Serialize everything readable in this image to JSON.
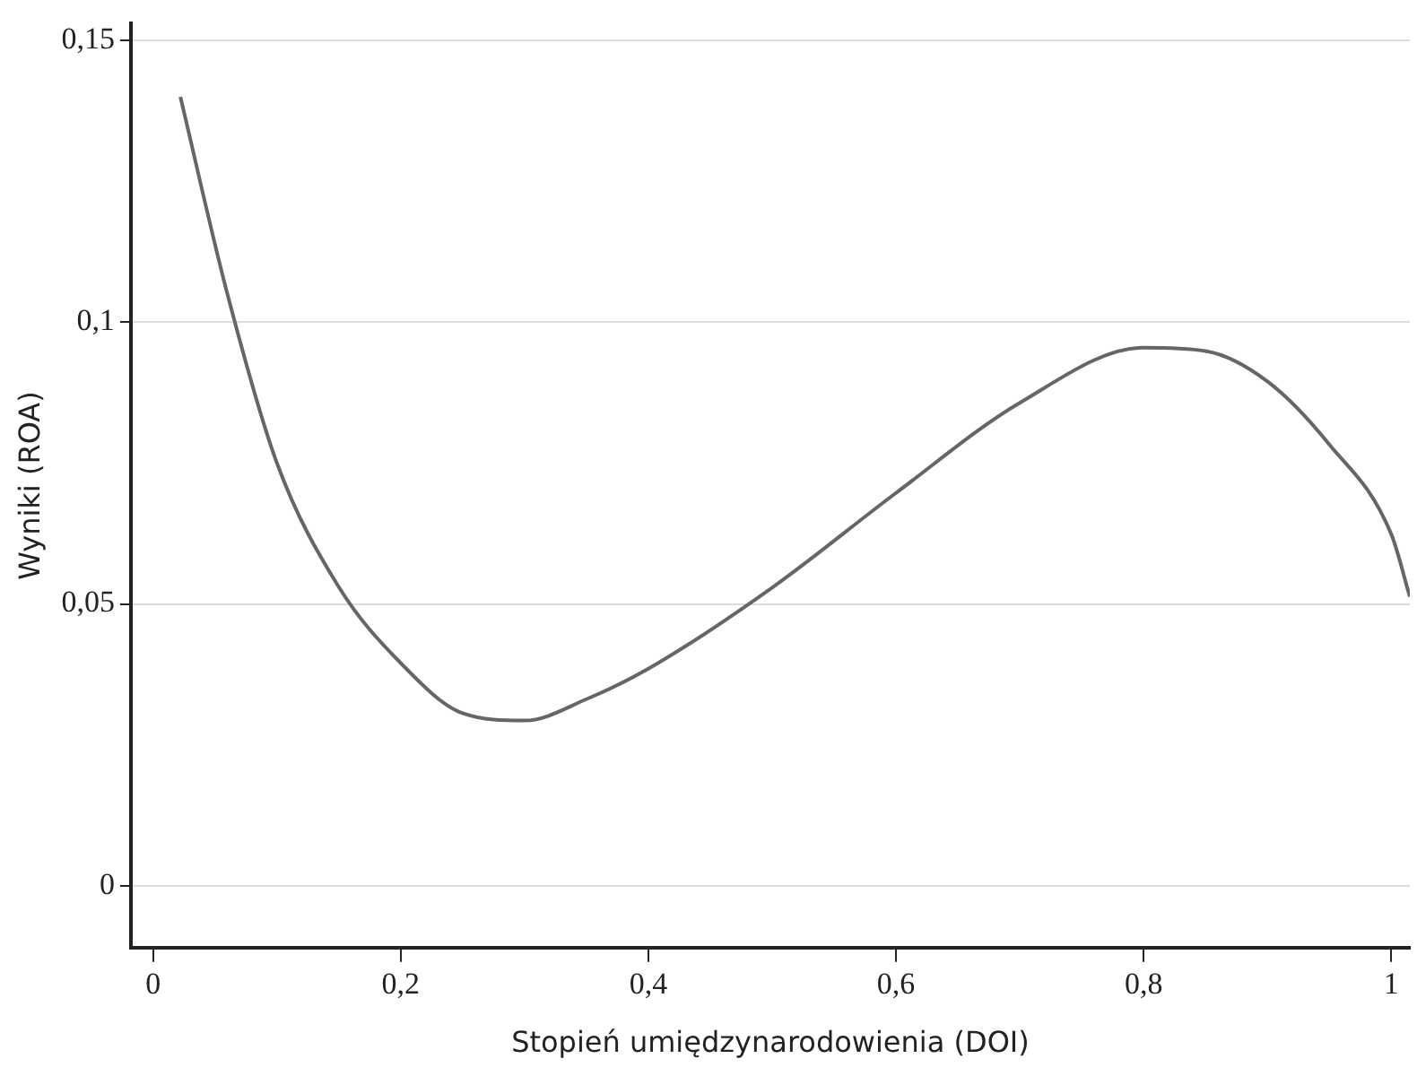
{
  "chart_data": {
    "type": "line",
    "xlabel": "Stopień umiędzynarodowienia (DOI)",
    "ylabel": "Wyniki (ROA)",
    "x": [
      0.022,
      0.06,
      0.1,
      0.15,
      0.2,
      0.25,
      0.3,
      0.35,
      0.4,
      0.5,
      0.6,
      0.7,
      0.8,
      0.85,
      0.9,
      0.95,
      1.0,
      1.015
    ],
    "series": [
      {
        "color": "#666666",
        "values": [
          0.14,
          0.105,
          0.075,
          0.053,
          0.0395,
          0.0306,
          0.0293,
          0.0331,
          0.0385,
          0.0529,
          0.0697,
          0.0857,
          0.0955,
          0.0949,
          0.0895,
          0.0783,
          0.0624,
          0.0513
        ]
      }
    ],
    "xlim": [
      -0.018,
      1.015
    ],
    "ylim": [
      -0.011,
      0.153
    ],
    "xticks": [
      0,
      {
        "value": 0.2,
        "label": "0,2"
      },
      {
        "value": 0.4,
        "label": "0,4"
      },
      {
        "value": 0.6,
        "label": "0,6"
      },
      {
        "value": 0.8,
        "label": "0,8"
      },
      1
    ],
    "yticks": [
      0,
      {
        "value": 0.05,
        "label": "0,05"
      },
      {
        "value": 0.1,
        "label": "0,1"
      },
      {
        "value": 0.15,
        "label": "0,15"
      }
    ],
    "grid": "y",
    "legend": false,
    "marker": "none",
    "line_style": "solid"
  }
}
